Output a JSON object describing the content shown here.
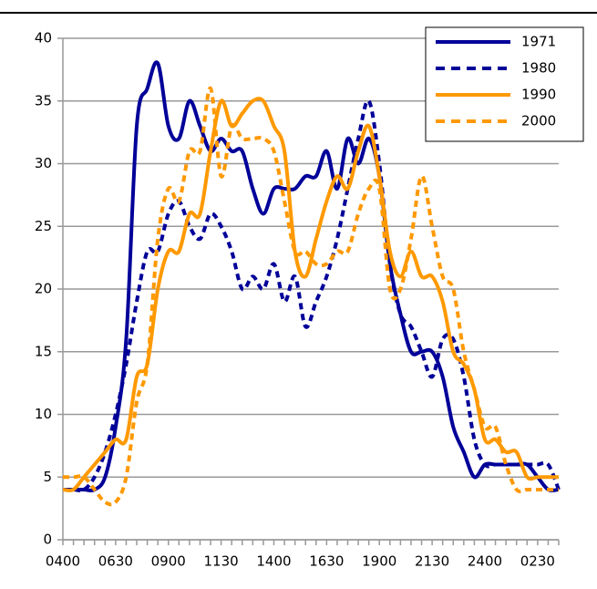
{
  "chart_data": {
    "type": "line",
    "categories": [
      "0400",
      null,
      null,
      null,
      null,
      "0630",
      null,
      null,
      null,
      null,
      "0900",
      null,
      null,
      null,
      null,
      "1130",
      null,
      null,
      null,
      null,
      "1400",
      null,
      null,
      null,
      null,
      "1630",
      null,
      null,
      null,
      null,
      "1900",
      null,
      null,
      null,
      null,
      "2130",
      null,
      null,
      null,
      null,
      "2400",
      null,
      null,
      null,
      null,
      "0230",
      null,
      null
    ],
    "series": [
      {
        "name": "1971",
        "color": "#000099",
        "dash": false,
        "values": [
          4,
          4,
          4,
          4,
          5,
          9,
          16,
          33,
          36,
          38,
          33,
          32,
          35,
          33,
          31,
          32,
          31,
          31,
          28,
          26,
          28,
          28,
          28,
          29,
          29,
          31,
          28,
          32,
          30,
          32,
          29,
          22,
          18,
          15,
          15,
          15,
          13,
          9,
          7,
          5,
          6,
          6,
          6,
          6,
          6,
          5,
          4,
          4
        ]
      },
      {
        "name": "1980",
        "color": "#000099",
        "dash": true,
        "values": [
          4,
          4,
          4,
          5,
          7,
          10,
          14,
          19,
          23,
          23,
          26,
          27,
          25,
          24,
          26,
          25,
          23,
          20,
          21,
          20,
          22,
          19,
          21,
          17,
          19,
          21,
          24,
          28,
          32,
          35,
          30,
          22,
          18,
          17,
          15,
          13,
          16,
          16,
          13,
          8,
          6,
          6,
          6,
          6,
          6,
          6,
          6,
          4
        ]
      },
      {
        "name": "1990",
        "color": "#ff9900",
        "dash": false,
        "values": [
          4,
          4,
          5,
          6,
          7,
          8,
          8,
          13,
          14,
          20,
          23,
          23,
          26,
          26,
          31,
          35,
          33,
          34,
          35,
          35,
          33,
          31,
          23,
          21,
          24,
          27,
          29,
          28,
          31,
          33,
          29,
          23,
          21,
          23,
          21,
          21,
          19,
          15,
          14,
          12,
          8,
          8,
          7,
          7,
          5,
          5,
          5,
          5
        ]
      },
      {
        "name": "2000",
        "color": "#ff9900",
        "dash": true,
        "values": [
          5,
          5,
          5,
          4,
          3,
          3,
          5,
          11,
          14,
          24,
          28,
          27,
          31,
          31,
          36,
          29,
          33,
          32,
          32,
          32,
          31,
          27,
          23,
          23,
          22,
          22,
          23,
          23,
          26,
          28,
          28,
          20,
          20,
          24,
          29,
          25,
          21,
          20,
          15,
          12,
          9,
          9,
          6,
          4,
          4,
          4,
          4,
          4
        ]
      }
    ],
    "ylim": [
      0,
      40
    ],
    "yticks": [
      0,
      5,
      10,
      15,
      20,
      25,
      30,
      35,
      40
    ],
    "grid": true,
    "legend": "top-right"
  }
}
